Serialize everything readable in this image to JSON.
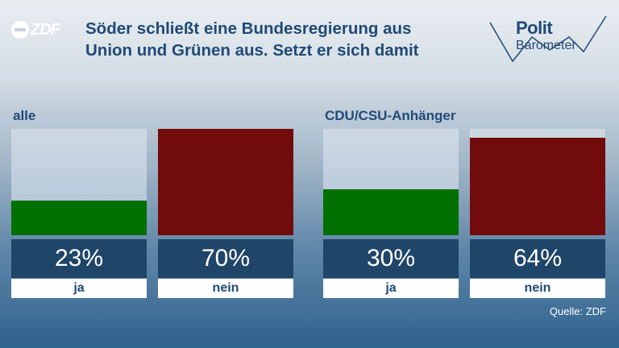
{
  "logo": {
    "text": "ZDF"
  },
  "title": {
    "line1": "Söder schließt eine Bundesregierung aus",
    "line2": "Union und Grünen aus. Setzt er sich damit"
  },
  "brand": {
    "line1": "Polit",
    "line2": "Barometer"
  },
  "source": "Quelle: ZDF",
  "colors": {
    "ja": "#007000",
    "nein": "#720b0b",
    "value_box": "#1f4568",
    "title": "#1f4a77"
  },
  "chart_data": {
    "type": "bar",
    "categories": [
      "ja",
      "nein"
    ],
    "ylim": [
      0,
      70
    ],
    "groups": [
      {
        "label": "alle",
        "values": [
          23,
          70
        ],
        "display": [
          "23%",
          "70%"
        ]
      },
      {
        "label": "CDU/CSU-Anhänger",
        "values": [
          30,
          64
        ],
        "display": [
          "30%",
          "64%"
        ]
      }
    ]
  }
}
